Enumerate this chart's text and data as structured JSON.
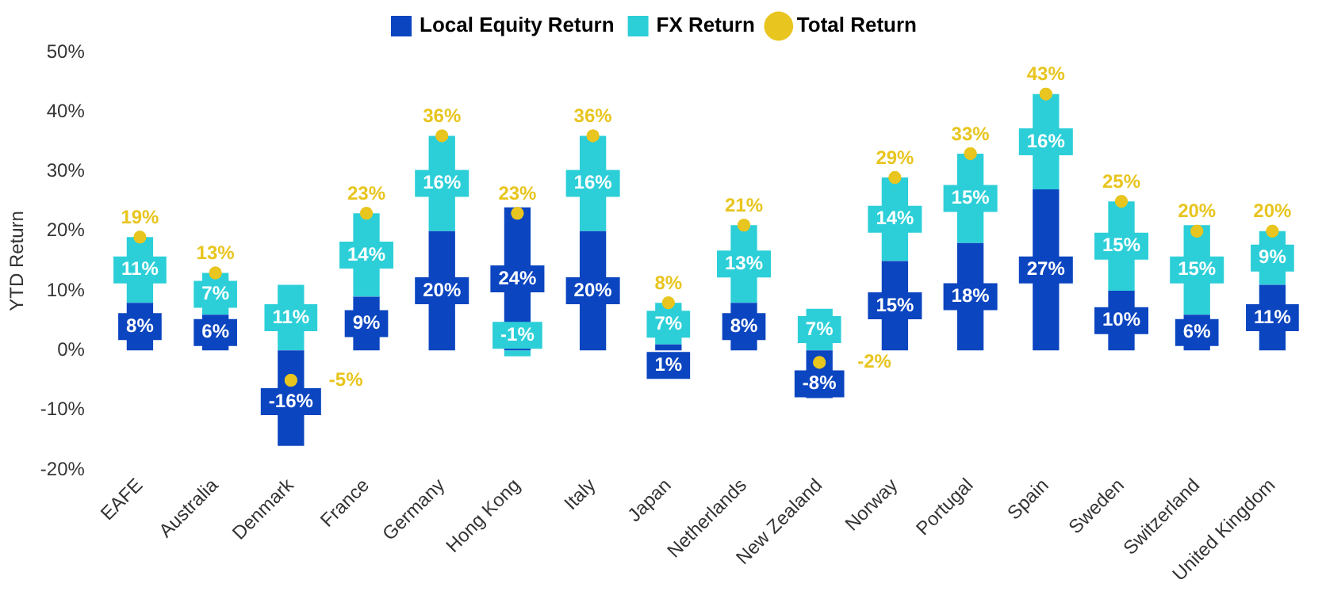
{
  "chart_data": {
    "type": "bar",
    "stacked": true,
    "ylabel": "YTD Return",
    "legend": "top",
    "grid": false,
    "categories": [
      "EAFE",
      "Australia",
      "Denmark",
      "France",
      "Germany",
      "Hong Kong",
      "Italy",
      "Japan",
      "Netherlands",
      "New Zealand",
      "Norway",
      "Portugal",
      "Spain",
      "Sweden",
      "Switzerland",
      "United Kingdom"
    ],
    "series": [
      {
        "name": "Local Equity Return",
        "type": "bar",
        "color": "#0b45c0",
        "values": [
          8,
          6,
          -16,
          9,
          20,
          24,
          20,
          1,
          8,
          -8,
          15,
          18,
          27,
          10,
          6,
          11
        ],
        "value_labels": [
          "8%",
          "6%",
          "-16%",
          "9%",
          "20%",
          "24%",
          "20%",
          "1%",
          "8%",
          "-8%",
          "15%",
          "18%",
          "27%",
          "10%",
          "6%",
          "11%"
        ]
      },
      {
        "name": "FX Return",
        "type": "bar",
        "color": "#2ccfd8",
        "values": [
          11,
          7,
          11,
          14,
          16,
          -1,
          16,
          7,
          13,
          7,
          14,
          15,
          16,
          15,
          15,
          9
        ],
        "value_labels": [
          "11%",
          "7%",
          "11%",
          "14%",
          "16%",
          "-1%",
          "16%",
          "7%",
          "13%",
          "7%",
          "14%",
          "15%",
          "16%",
          "15%",
          "15%",
          "9%"
        ]
      },
      {
        "name": "Total Return",
        "type": "scatter",
        "color": "#e8c51f",
        "marker": "circle",
        "x": [
          "EAFE",
          "Australia",
          "Denmark",
          "France",
          "Germany",
          "Hong Kong",
          "Italy",
          "Japan",
          "Netherlands",
          "New Zealand",
          "Norway",
          "Portugal",
          "Spain",
          "Sweden",
          "Switzerland",
          "United Kingdom"
        ],
        "values": [
          19,
          13,
          -5,
          23,
          36,
          23,
          36,
          8,
          21,
          -2,
          29,
          33,
          43,
          25,
          20,
          20
        ],
        "value_labels": [
          "19%",
          "13%",
          "-5%",
          "23%",
          "36%",
          "23%",
          "36%",
          "8%",
          "21%",
          "-2%",
          "29%",
          "33%",
          "43%",
          "25%",
          "20%",
          "20%"
        ]
      }
    ],
    "ylim": [
      -20,
      50
    ],
    "yticks": [
      {
        "value": -20,
        "label": "-20%"
      },
      {
        "value": -10,
        "label": "-10%"
      },
      {
        "value": 0,
        "label": "0%"
      },
      {
        "value": 10,
        "label": "10%"
      },
      {
        "value": 20,
        "label": "20%"
      },
      {
        "value": 30,
        "label": "30%"
      },
      {
        "value": 40,
        "label": "40%"
      },
      {
        "value": 50,
        "label": "50%"
      }
    ]
  }
}
